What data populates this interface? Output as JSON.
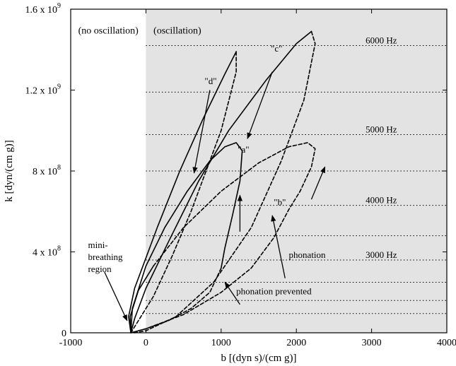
{
  "chart_data": {
    "type": "line",
    "xlabel": "b [(dyn s)/(cm g)]",
    "ylabel": "k [dyn/(cm g)]",
    "xlim": [
      -1000,
      4000
    ],
    "ylim": [
      0,
      1600000000
    ],
    "x_ticks": [
      {
        "value": -1000,
        "label": "-1000"
      },
      {
        "value": 0,
        "label": "0"
      },
      {
        "value": 1000,
        "label": "1000"
      },
      {
        "value": 2000,
        "label": "2000"
      },
      {
        "value": 3000,
        "label": "3000"
      },
      {
        "value": 4000,
        "label": "4000"
      }
    ],
    "y_ticks": [
      {
        "value": 0,
        "mant": "0",
        "exp": ""
      },
      {
        "value": 400000000,
        "mant": "4 x 10",
        "exp": "8"
      },
      {
        "value": 800000000,
        "mant": "8 x 10",
        "exp": "8"
      },
      {
        "value": 1200000000,
        "mant": "1.2 x 10",
        "exp": "9"
      },
      {
        "value": 1600000000,
        "mant": "1.6 x 10",
        "exp": "9"
      }
    ],
    "shaded_region": {
      "x_from": 0,
      "x_to": 4000,
      "color": "#e3e3e3"
    },
    "region_labels": [
      {
        "text": "(no oscillation)",
        "x": -900,
        "y": 1480000000
      },
      {
        "text": "(oscillation)",
        "x": 100,
        "y": 1480000000
      }
    ],
    "frequency_lines": {
      "k_values": [
        95000000,
        160000000,
        250000000,
        360000000,
        480000000,
        630000000,
        800000000,
        980000000,
        1190000000,
        1420000000
      ],
      "labels": [
        {
          "text": "6000 Hz",
          "k": 1420000000
        },
        {
          "text": "5000 Hz",
          "k": 980000000
        },
        {
          "text": "4000 Hz",
          "k": 630000000
        },
        {
          "text": "3000 Hz",
          "k": 360000000
        }
      ]
    },
    "series": [
      {
        "label": "\"c\"",
        "style": "solid",
        "points": [
          [
            -200,
            0
          ],
          [
            -150,
            70000000
          ],
          [
            0,
            220000000
          ],
          [
            300,
            450000000
          ],
          [
            700,
            750000000
          ],
          [
            1100,
            1000000000
          ],
          [
            1600,
            1250000000
          ],
          [
            2000,
            1430000000
          ],
          [
            2200,
            1490000000
          ]
        ]
      },
      {
        "label": "\"c\"",
        "style": "dashed",
        "points": [
          [
            2200,
            1490000000
          ],
          [
            2250,
            1430000000
          ],
          [
            2100,
            1150000000
          ],
          [
            1800,
            850000000
          ],
          [
            1400,
            520000000
          ],
          [
            900,
            250000000
          ],
          [
            400,
            80000000
          ],
          [
            0,
            10000000
          ],
          [
            -150,
            0
          ]
        ]
      },
      {
        "label": "\"d\"",
        "style": "solid",
        "points": [
          [
            -200,
            0
          ],
          [
            -230,
            80000000
          ],
          [
            -150,
            220000000
          ],
          [
            150,
            520000000
          ],
          [
            450,
            800000000
          ],
          [
            750,
            1050000000
          ],
          [
            1050,
            1280000000
          ],
          [
            1200,
            1390000000
          ]
        ]
      },
      {
        "label": "\"d\"",
        "style": "dashed",
        "points": [
          [
            1200,
            1390000000
          ],
          [
            1200,
            1290000000
          ],
          [
            1000,
            1000000000
          ],
          [
            800,
            800000000
          ],
          [
            600,
            600000000
          ],
          [
            350,
            380000000
          ],
          [
            100,
            180000000
          ],
          [
            -100,
            60000000
          ],
          [
            -200,
            0
          ]
        ]
      },
      {
        "label": "\"a\"",
        "style": "solid",
        "points": [
          [
            -200,
            0
          ],
          [
            -180,
            120000000
          ],
          [
            0,
            330000000
          ],
          [
            250,
            520000000
          ],
          [
            550,
            700000000
          ],
          [
            850,
            850000000
          ],
          [
            1050,
            920000000
          ],
          [
            1200,
            940000000
          ],
          [
            1280,
            900000000
          ],
          [
            1250,
            750000000
          ],
          [
            1150,
            580000000
          ],
          [
            1050,
            420000000
          ],
          [
            1000,
            320000000
          ]
        ]
      },
      {
        "label": "\"a\"",
        "style": "dashed",
        "points": [
          [
            1000,
            320000000
          ],
          [
            850,
            200000000
          ],
          [
            600,
            120000000
          ],
          [
            300,
            60000000
          ],
          [
            0,
            20000000
          ],
          [
            -200,
            0
          ]
        ]
      },
      {
        "label": "\"b\"",
        "style": "solid",
        "points": [
          [
            -200,
            0
          ],
          [
            -210,
            80000000
          ],
          [
            -100,
            210000000
          ],
          [
            100,
            330000000
          ]
        ]
      },
      {
        "label": "\"b\"",
        "style": "dashed",
        "points": [
          [
            100,
            330000000
          ],
          [
            500,
            520000000
          ],
          [
            1000,
            700000000
          ],
          [
            1500,
            840000000
          ],
          [
            1900,
            920000000
          ],
          [
            2150,
            940000000
          ],
          [
            2250,
            910000000
          ],
          [
            2200,
            820000000
          ],
          [
            2050,
            700000000
          ],
          [
            1900,
            610000000
          ],
          [
            1700,
            470000000
          ],
          [
            1400,
            320000000
          ],
          [
            1000,
            200000000
          ],
          [
            500,
            90000000
          ],
          [
            0,
            20000000
          ],
          [
            -200,
            0
          ]
        ]
      }
    ],
    "arrows": [
      {
        "name": "arrow-c",
        "from": [
          1680,
          1290000000
        ],
        "to": [
          1350,
          960000000
        ]
      },
      {
        "name": "arrow-d",
        "from": [
          850,
          1200000000
        ],
        "to": [
          640,
          790000000
        ]
      },
      {
        "name": "arrow-a",
        "from": [
          1250,
          500000000
        ],
        "to": [
          1250,
          680000000
        ]
      },
      {
        "name": "arrow-b",
        "from": [
          2200,
          660000000
        ],
        "to": [
          2380,
          820000000
        ]
      },
      {
        "name": "arrow-phonation",
        "from": [
          1850,
          270000000
        ],
        "to": [
          1680,
          580000000
        ]
      },
      {
        "name": "arrow-phonation-prevented",
        "from": [
          1250,
          140000000
        ],
        "to": [
          1050,
          250000000
        ]
      },
      {
        "name": "arrow-mini-breathing",
        "from": [
          -550,
          300000000
        ],
        "to": [
          -250,
          60000000
        ]
      }
    ],
    "annotations": [
      {
        "text": "\"c\"",
        "x": 1660,
        "y": 1390000000
      },
      {
        "text": "\"d\"",
        "x": 780,
        "y": 1230000000
      },
      {
        "text": "\"a\"",
        "x": 1220,
        "y": 890000000
      },
      {
        "text": "\"b\"",
        "x": 1700,
        "y": 630000000
      },
      {
        "text": "phonation",
        "x": 1900,
        "y": 370000000
      },
      {
        "text": "phonation prevented",
        "x": 1200,
        "y": 190000000
      },
      {
        "text": "mini-",
        "x": -770,
        "y": 420000000
      },
      {
        "text": "breathing",
        "x": -770,
        "y": 360000000
      },
      {
        "text": "region",
        "x": -770,
        "y": 300000000
      }
    ],
    "grid": false,
    "legend": "none"
  }
}
